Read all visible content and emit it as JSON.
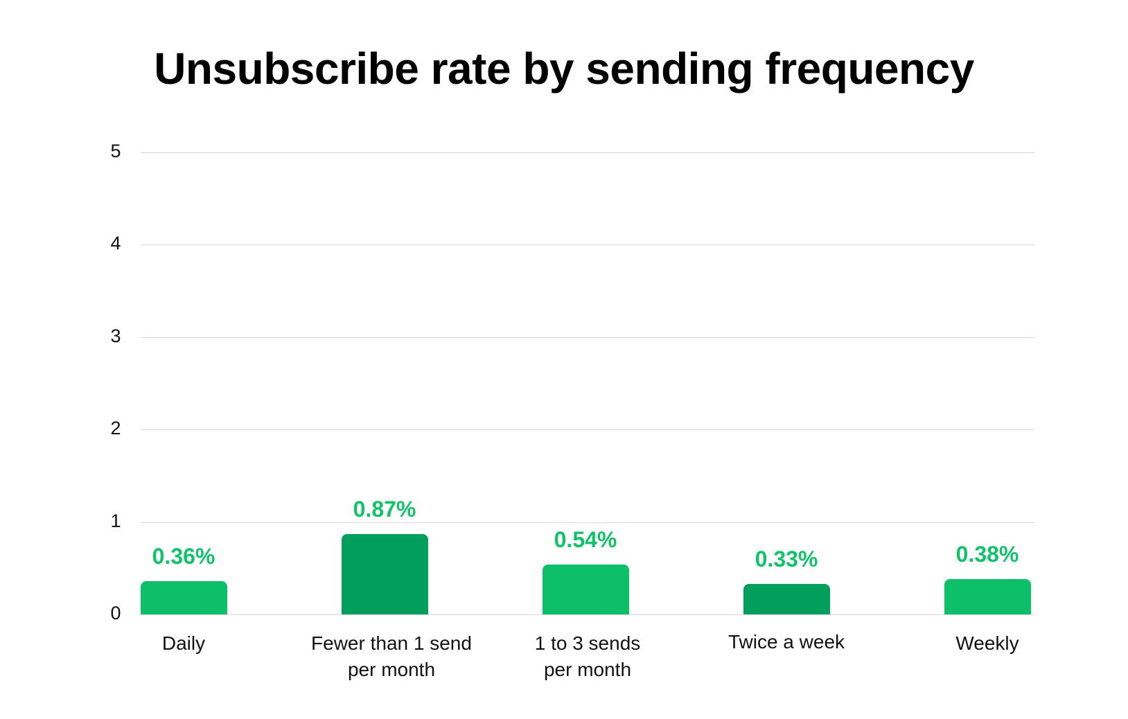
{
  "chart_data": {
    "type": "bar",
    "title": "Unsubscribe rate by sending frequency",
    "categories": [
      "Daily",
      "Fewer than 1 send per month",
      "1 to 3 sends per month",
      "Twice a week",
      "Weekly"
    ],
    "category_lines": [
      [
        "Daily"
      ],
      [
        "Fewer than 1 send",
        "per month"
      ],
      [
        "1 to 3 sends",
        "per month"
      ],
      [
        "Twice a week"
      ],
      [
        "Weekly"
      ]
    ],
    "values": [
      0.36,
      0.87,
      0.54,
      0.33,
      0.38
    ],
    "value_labels": [
      "0.36%",
      "0.87%",
      "0.54%",
      "0.33%",
      "0.38%"
    ],
    "bar_colors": [
      "#0dbf69",
      "#029e5c",
      "#0dbf69",
      "#029e5c",
      "#0dbf69"
    ],
    "label_color": "#12c26b",
    "xlabel": "",
    "ylabel": "",
    "ylim": [
      0,
      5
    ],
    "yticks": [
      "0",
      "1",
      "2",
      "3",
      "4",
      "5"
    ],
    "grid": true,
    "legend": null
  }
}
